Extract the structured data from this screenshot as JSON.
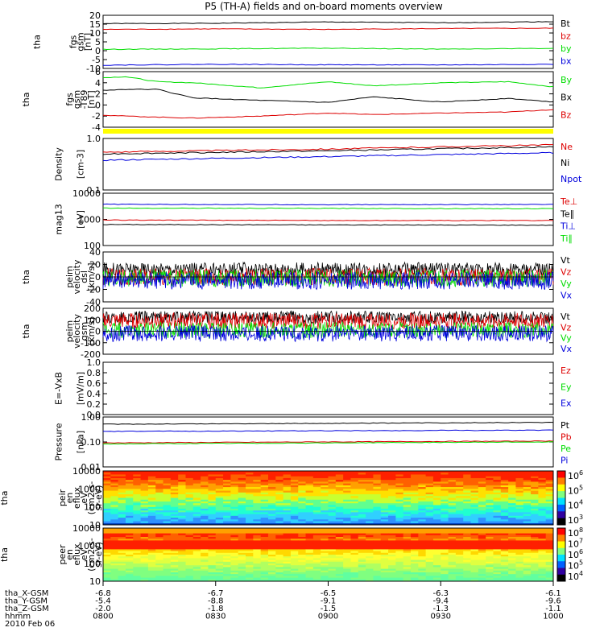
{
  "title": "P5 (TH-A) fields and on-board moments overview",
  "colors": {
    "black": "#000000",
    "red": "#dd0000",
    "green": "#00dd00",
    "blue": "#0000dd",
    "yellow": "#ffff00"
  },
  "chart_data": [
    {
      "type": "line",
      "id": "p1",
      "ylabel": [
        "tha",
        "fgs",
        "gsm",
        "[nT]"
      ],
      "yticks": [
        "20",
        "15",
        "10",
        "5",
        "0",
        "-5",
        "-10"
      ],
      "ylim": [
        -12,
        20
      ],
      "series": [
        {
          "name": "Bt",
          "color": "black",
          "x": [
            0,
            0.25,
            0.5,
            0.75,
            1
          ],
          "y": [
            15,
            15.2,
            16,
            15.5,
            16.2
          ]
        },
        {
          "name": "bz",
          "color": "red",
          "x": [
            0,
            0.25,
            0.5,
            0.75,
            1
          ],
          "y": [
            11.5,
            11.8,
            11.5,
            12,
            12.2
          ]
        },
        {
          "name": "by",
          "color": "green",
          "x": [
            0,
            0.25,
            0.5,
            0.75,
            1
          ],
          "y": [
            -0.5,
            -0.2,
            0.2,
            -0.4,
            0.1
          ]
        },
        {
          "name": "bx",
          "color": "blue",
          "x": [
            0,
            0.25,
            0.5,
            0.75,
            1
          ],
          "y": [
            -10,
            -9.5,
            -9.8,
            -9.9,
            -9.5
          ]
        }
      ]
    },
    {
      "type": "line",
      "id": "p2",
      "ylabel": [
        "tha",
        "fgs",
        "gsm",
        "-T89",
        "[nT]"
      ],
      "yticks": [
        "6",
        "4",
        "2",
        "0",
        "-2",
        "-4"
      ],
      "ylim": [
        -5,
        6
      ],
      "series": [
        {
          "name": "By",
          "color": "green",
          "x": [
            0,
            0.05,
            0.12,
            0.2,
            0.35,
            0.5,
            0.6,
            0.75,
            0.9,
            1
          ],
          "y": [
            4.8,
            5,
            4,
            3.8,
            2.8,
            4,
            3.2,
            3.8,
            4,
            3
          ]
        },
        {
          "name": "Bx",
          "color": "black",
          "x": [
            0,
            0.05,
            0.12,
            0.2,
            0.35,
            0.5,
            0.6,
            0.75,
            0.9,
            1
          ],
          "y": [
            2.3,
            2.5,
            2.5,
            0.8,
            0.3,
            -0.1,
            1,
            0,
            0.7,
            0
          ]
        },
        {
          "name": "Bz",
          "color": "red",
          "x": [
            0,
            0.05,
            0.12,
            0.2,
            0.35,
            0.5,
            0.6,
            0.75,
            0.9,
            1
          ],
          "y": [
            -2.6,
            -2.8,
            -3,
            -3.2,
            -2.8,
            -2.2,
            -2.5,
            -2.2,
            -2,
            -1.5
          ]
        }
      ]
    },
    {
      "type": "line",
      "id": "p3",
      "log": true,
      "ylabel": [
        "Density",
        "[cm-3]"
      ],
      "yticks": [
        "1.0",
        "0.1"
      ],
      "ylim": [
        0.1,
        1.2
      ],
      "series": [
        {
          "name": "Ne",
          "color": "red",
          "x": [
            0,
            0.5,
            1
          ],
          "y": [
            0.62,
            0.72,
            0.88
          ]
        },
        {
          "name": "Ni",
          "color": "black",
          "x": [
            0,
            0.5,
            1
          ],
          "y": [
            0.57,
            0.66,
            0.8
          ]
        },
        {
          "name": "Npot",
          "color": "blue",
          "x": [
            0,
            0.5,
            1
          ],
          "y": [
            0.42,
            0.5,
            0.6
          ]
        }
      ]
    },
    {
      "type": "line",
      "id": "p4",
      "log": true,
      "ylabel": [
        "mag13",
        "[eV]"
      ],
      "yticks": [
        "10000",
        "1000",
        "100"
      ],
      "ylim": [
        100,
        15000
      ],
      "series": [
        {
          "name": "Te⊥",
          "color": "red",
          "x": [
            0,
            0.5,
            1
          ],
          "y": [
            1150,
            1100,
            1100
          ]
        },
        {
          "name": "Te∥",
          "color": "black",
          "x": [
            0,
            0.5,
            1
          ],
          "y": [
            750,
            720,
            700
          ]
        },
        {
          "name": "Ti⊥",
          "color": "blue",
          "x": [
            0,
            0.5,
            1
          ],
          "y": [
            5200,
            5000,
            5100
          ]
        },
        {
          "name": "Ti∥",
          "color": "green",
          "x": [
            0,
            0.5,
            1
          ],
          "y": [
            3600,
            3500,
            3400
          ]
        }
      ]
    },
    {
      "type": "line",
      "id": "p5",
      "ylabel": [
        "tha",
        "peim",
        "velocity",
        "dsl",
        "[km/s]"
      ],
      "yticks": [
        "40",
        "20",
        "0",
        "-20",
        "-40"
      ],
      "ylim": [
        -40,
        40
      ],
      "series": [
        {
          "name": "Vt",
          "color": "black",
          "x": [
            0,
            1
          ],
          "y": [
            12,
            12
          ]
        },
        {
          "name": "Vz",
          "color": "red",
          "x": [
            0,
            1
          ],
          "y": [
            0,
            0
          ]
        },
        {
          "name": "Vy",
          "color": "green",
          "x": [
            0,
            1
          ],
          "y": [
            -2,
            -2
          ]
        },
        {
          "name": "Vx",
          "color": "blue",
          "x": [
            0,
            1
          ],
          "y": [
            -6,
            -6
          ]
        }
      ]
    },
    {
      "type": "line",
      "id": "p6",
      "ylabel": [
        "tha",
        "peim",
        "velocity",
        "gsm",
        "[km/s]"
      ],
      "yticks": [
        "200",
        "100",
        "0",
        "-100",
        "-200"
      ],
      "ylim": [
        -200,
        200
      ],
      "series": [
        {
          "name": "Vt",
          "color": "black",
          "x": [
            0,
            1
          ],
          "y": [
            120,
            120
          ]
        },
        {
          "name": "Vz",
          "color": "red",
          "x": [
            0,
            1
          ],
          "y": [
            90,
            90
          ]
        },
        {
          "name": "Vy",
          "color": "green",
          "x": [
            0,
            1
          ],
          "y": [
            10,
            10
          ]
        },
        {
          "name": "Vx",
          "color": "blue",
          "x": [
            0,
            1
          ],
          "y": [
            -20,
            -20
          ]
        }
      ]
    },
    {
      "type": "line",
      "id": "p7",
      "ylabel": [
        "E=-VxB",
        "[mV/m]"
      ],
      "yticks": [
        "1.0",
        "0.8",
        "0.6",
        "0.4",
        "0.2",
        "0.0"
      ],
      "ylim": [
        0,
        1
      ],
      "series": [
        {
          "name": "Ez",
          "color": "red",
          "x": [],
          "y": []
        },
        {
          "name": "Ey",
          "color": "green",
          "x": [],
          "y": []
        },
        {
          "name": "Ex",
          "color": "blue",
          "x": [],
          "y": []
        }
      ]
    },
    {
      "type": "line",
      "id": "p8",
      "log": true,
      "ylabel": [
        "Pressure",
        "[nPa]"
      ],
      "yticks": [
        "1.00",
        "0.10",
        "0.01"
      ],
      "ylim": [
        0.01,
        1.2
      ],
      "series": [
        {
          "name": "Pt",
          "color": "black",
          "x": [
            0,
            0.5,
            1
          ],
          "y": [
            0.6,
            0.65,
            0.72
          ]
        },
        {
          "name": "Pb",
          "color": "red",
          "x": [
            0,
            0.5,
            1
          ],
          "y": [
            0.1,
            0.11,
            0.12
          ]
        },
        {
          "name": "Pe",
          "color": "green",
          "x": [
            0,
            0.5,
            1
          ],
          "y": [
            0.09,
            0.1,
            0.11
          ]
        },
        {
          "name": "Pi",
          "color": "blue",
          "x": [
            0,
            0.5,
            1
          ],
          "y": [
            0.3,
            0.32,
            0.34
          ]
        }
      ]
    },
    {
      "type": "heatmap",
      "id": "p9",
      "ylabel": [
        "tha",
        "peir",
        "en",
        "eflux",
        "eV",
        "(cm2-s-",
        "sr-eV)"
      ],
      "yticks": [
        "10000",
        "1000",
        "100",
        "10"
      ],
      "cbar": [
        "10^6",
        "10^5",
        "10^4",
        "10^3"
      ]
    },
    {
      "type": "heatmap",
      "id": "p10",
      "ylabel": [
        "tha",
        "peer",
        "en",
        "eflux",
        "eV",
        "(cm2-s-",
        "sr-eV)"
      ],
      "yticks": [
        "10000",
        "1000",
        "100",
        "10"
      ],
      "cbar": [
        "10^8",
        "10^7",
        "10^6",
        "10^5",
        "10^4"
      ]
    }
  ],
  "xaxis": {
    "labels": [
      "tha_X-GSM",
      "tha_Y-GSM",
      "tha_Z-GSM",
      "hhmm",
      "2010 Feb 06"
    ],
    "cols": [
      [
        "-6.8",
        "-5.4",
        "-2.0",
        "0800"
      ],
      [
        "-6.7",
        "-8.8",
        "-1.8",
        "0830"
      ],
      [
        "-6.5",
        "-9.1",
        "-1.5",
        "0900"
      ],
      [
        "-6.3",
        "-9.4",
        "-1.3",
        "0930"
      ],
      [
        "-6.1",
        "-9.6",
        "-1.1",
        "1000"
      ]
    ]
  }
}
